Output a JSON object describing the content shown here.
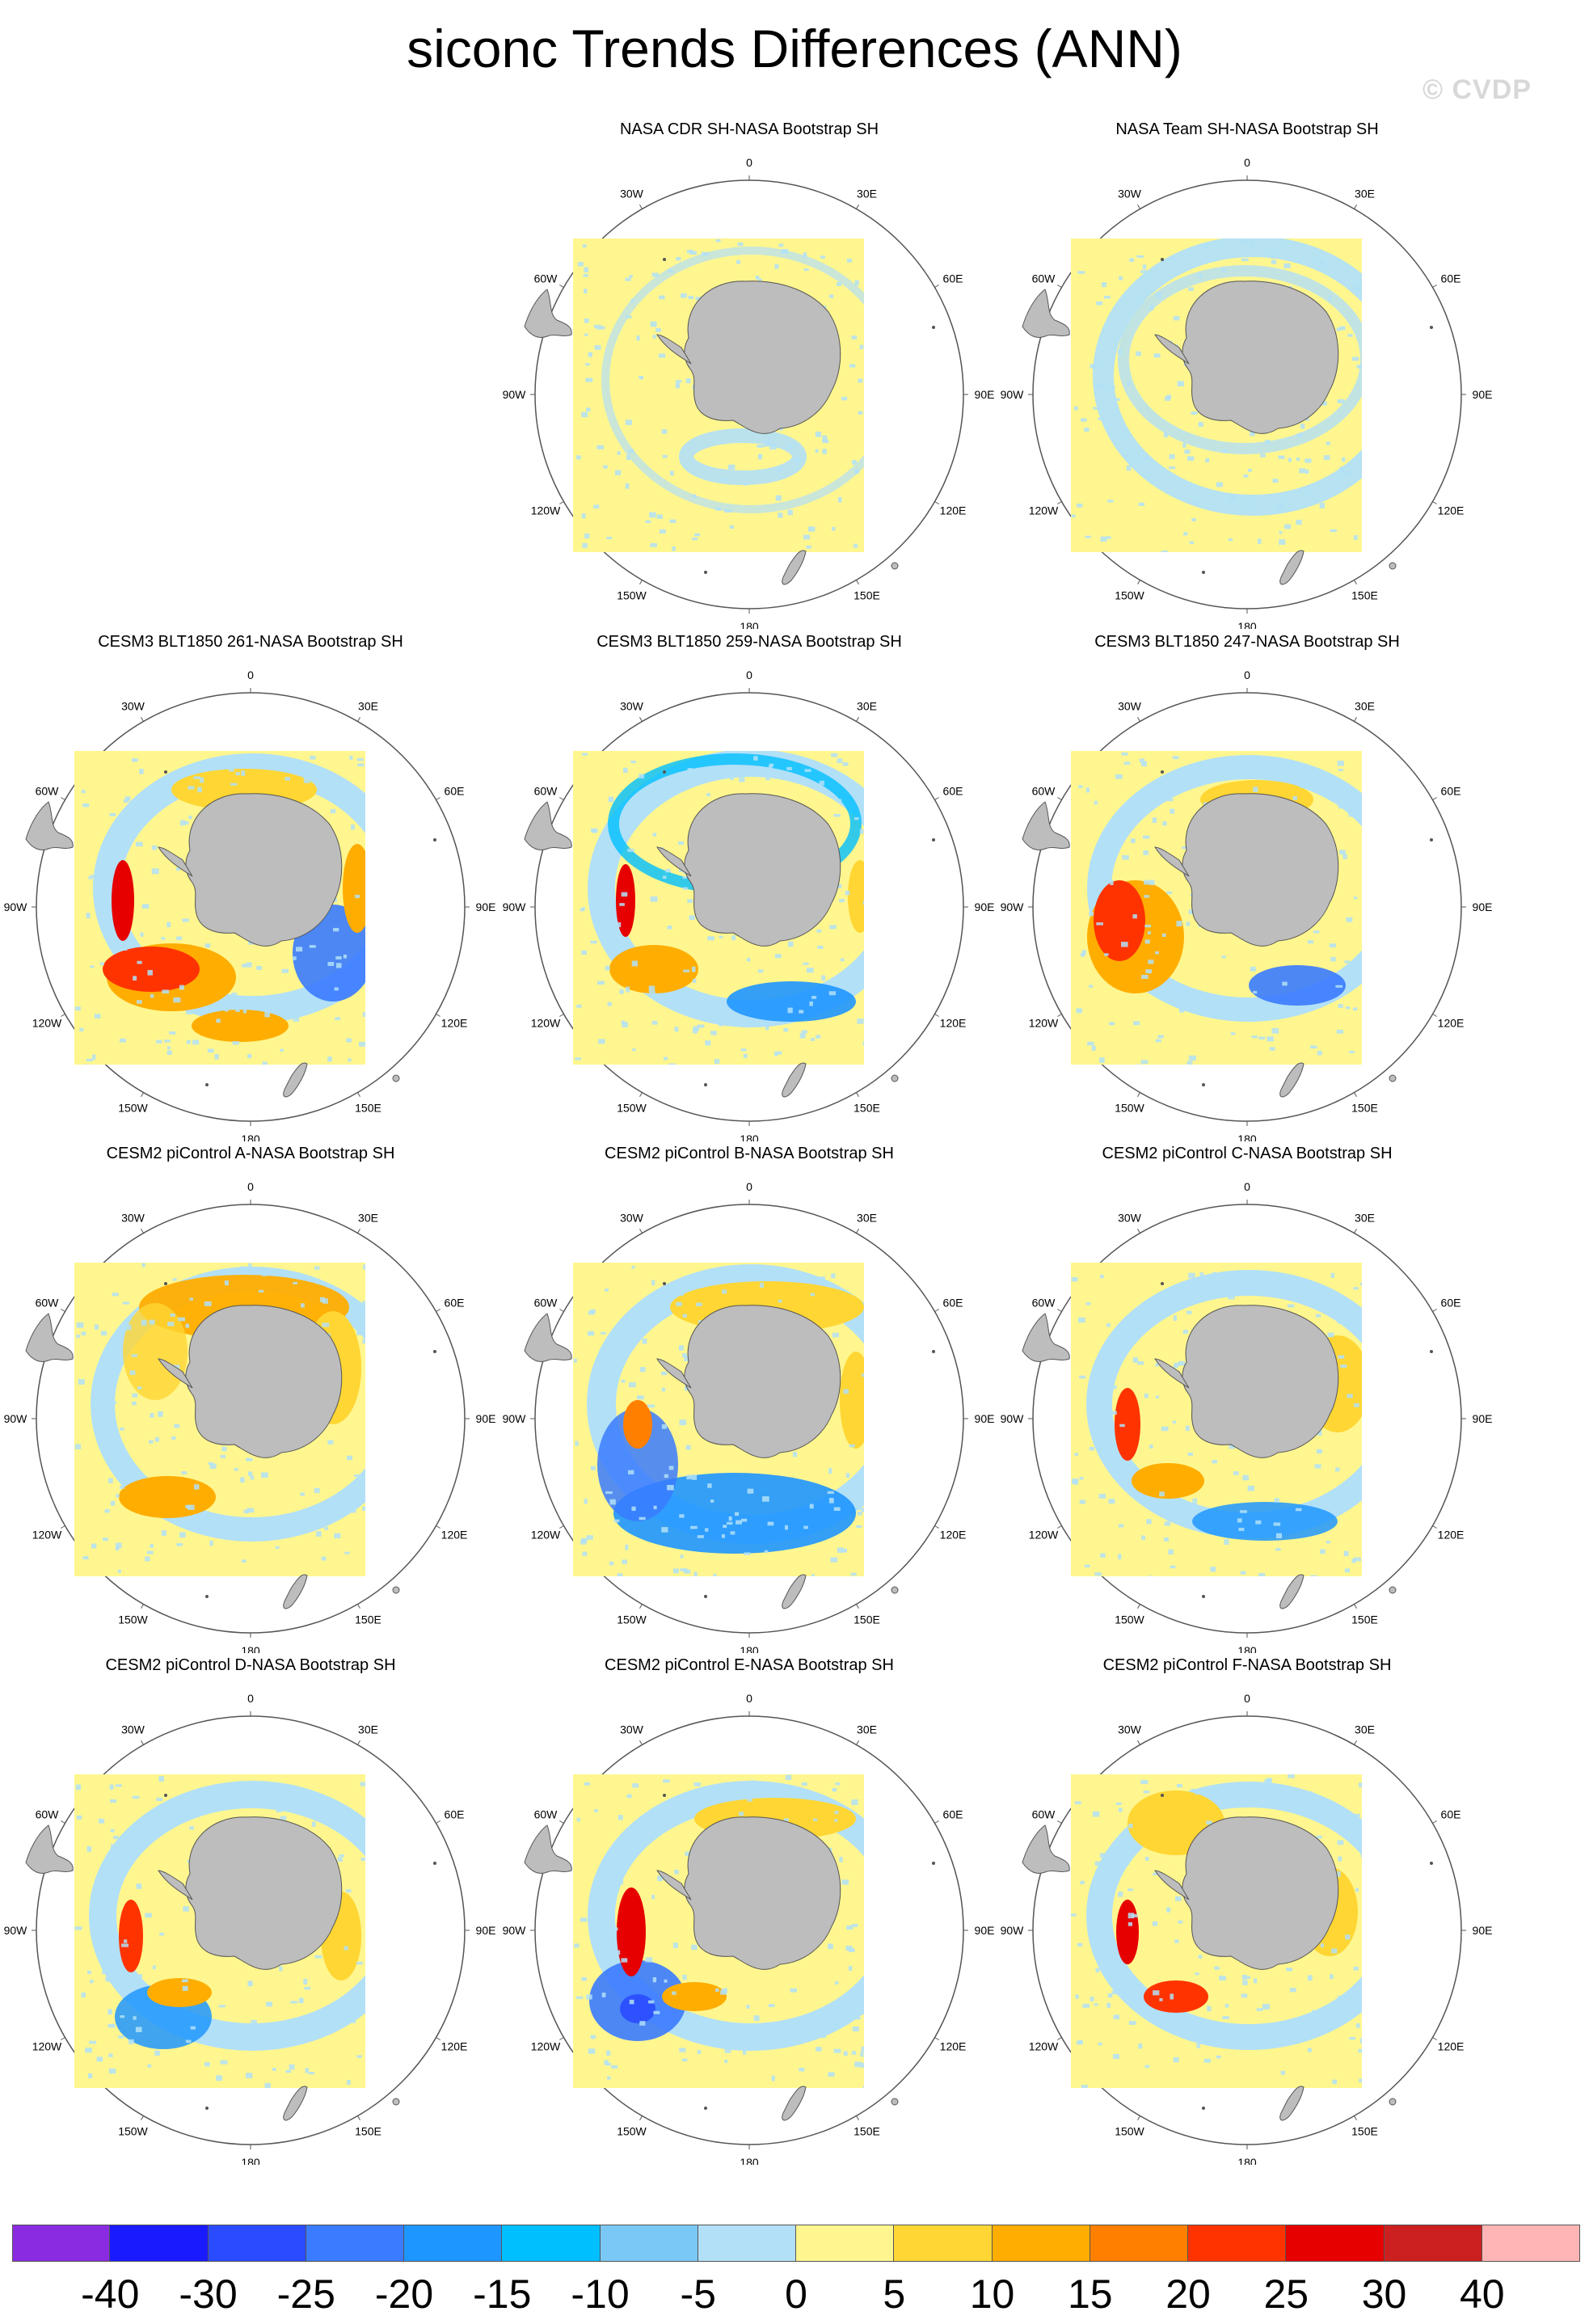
{
  "title": "siconc Trends Differences (ANN)",
  "watermark": "© CVDP",
  "map_labels": {
    "lon_0": "0",
    "lon_30e": "30E",
    "lon_60e": "60E",
    "lon_90e": "90E",
    "lon_120e": "120E",
    "lon_150e": "150E",
    "lon_180": "180",
    "lon_150w": "150W",
    "lon_120w": "120W",
    "lon_90w": "90W",
    "lon_60w": "60W",
    "lon_30w": "30W"
  },
  "panels": [
    {
      "title": "NASA CDR SH-NASA Bootstrap SH",
      "pattern": "obs-cdr"
    },
    {
      "title": "NASA Team SH-NASA Bootstrap SH",
      "pattern": "obs-team"
    },
    {
      "title": "CESM3 BLT1850 261-NASA Bootstrap SH",
      "pattern": "strong-warm"
    },
    {
      "title": "CESM3 BLT1850 259-NASA Bootstrap SH",
      "pattern": "mixed-warm"
    },
    {
      "title": "CESM3 BLT1850 247-NASA Bootstrap SH",
      "pattern": "warm-west"
    },
    {
      "title": "CESM2 piControl A-NASA Bootstrap SH",
      "pattern": "ring-warm"
    },
    {
      "title": "CESM2 piControl B-NASA Bootstrap SH",
      "pattern": "ring-cold"
    },
    {
      "title": "CESM2 piControl C-NASA Bootstrap SH",
      "pattern": "mixed"
    },
    {
      "title": "CESM2 piControl D-NASA Bootstrap SH",
      "pattern": "mixed-cool"
    },
    {
      "title": "CESM2 piControl E-NASA Bootstrap SH",
      "pattern": "cold-warm-pen"
    },
    {
      "title": "CESM2 piControl F-NASA Bootstrap SH",
      "pattern": "mixed-warm2"
    }
  ],
  "colorbar": {
    "colors": [
      "#8a2be2",
      "#1a1aff",
      "#2a4bff",
      "#3a7bff",
      "#1e96ff",
      "#00bfff",
      "#7ac8f5",
      "#b2e0f7",
      "#fff68f",
      "#ffd633",
      "#ffad00",
      "#ff7f00",
      "#ff3300",
      "#e60000",
      "#cc1f1f",
      "#ffb5b5"
    ],
    "labels": [
      "-40",
      "-30",
      "-25",
      "-20",
      "-15",
      "-10",
      "-5",
      "0",
      "5",
      "10",
      "15",
      "20",
      "25",
      "30",
      "40"
    ]
  }
}
